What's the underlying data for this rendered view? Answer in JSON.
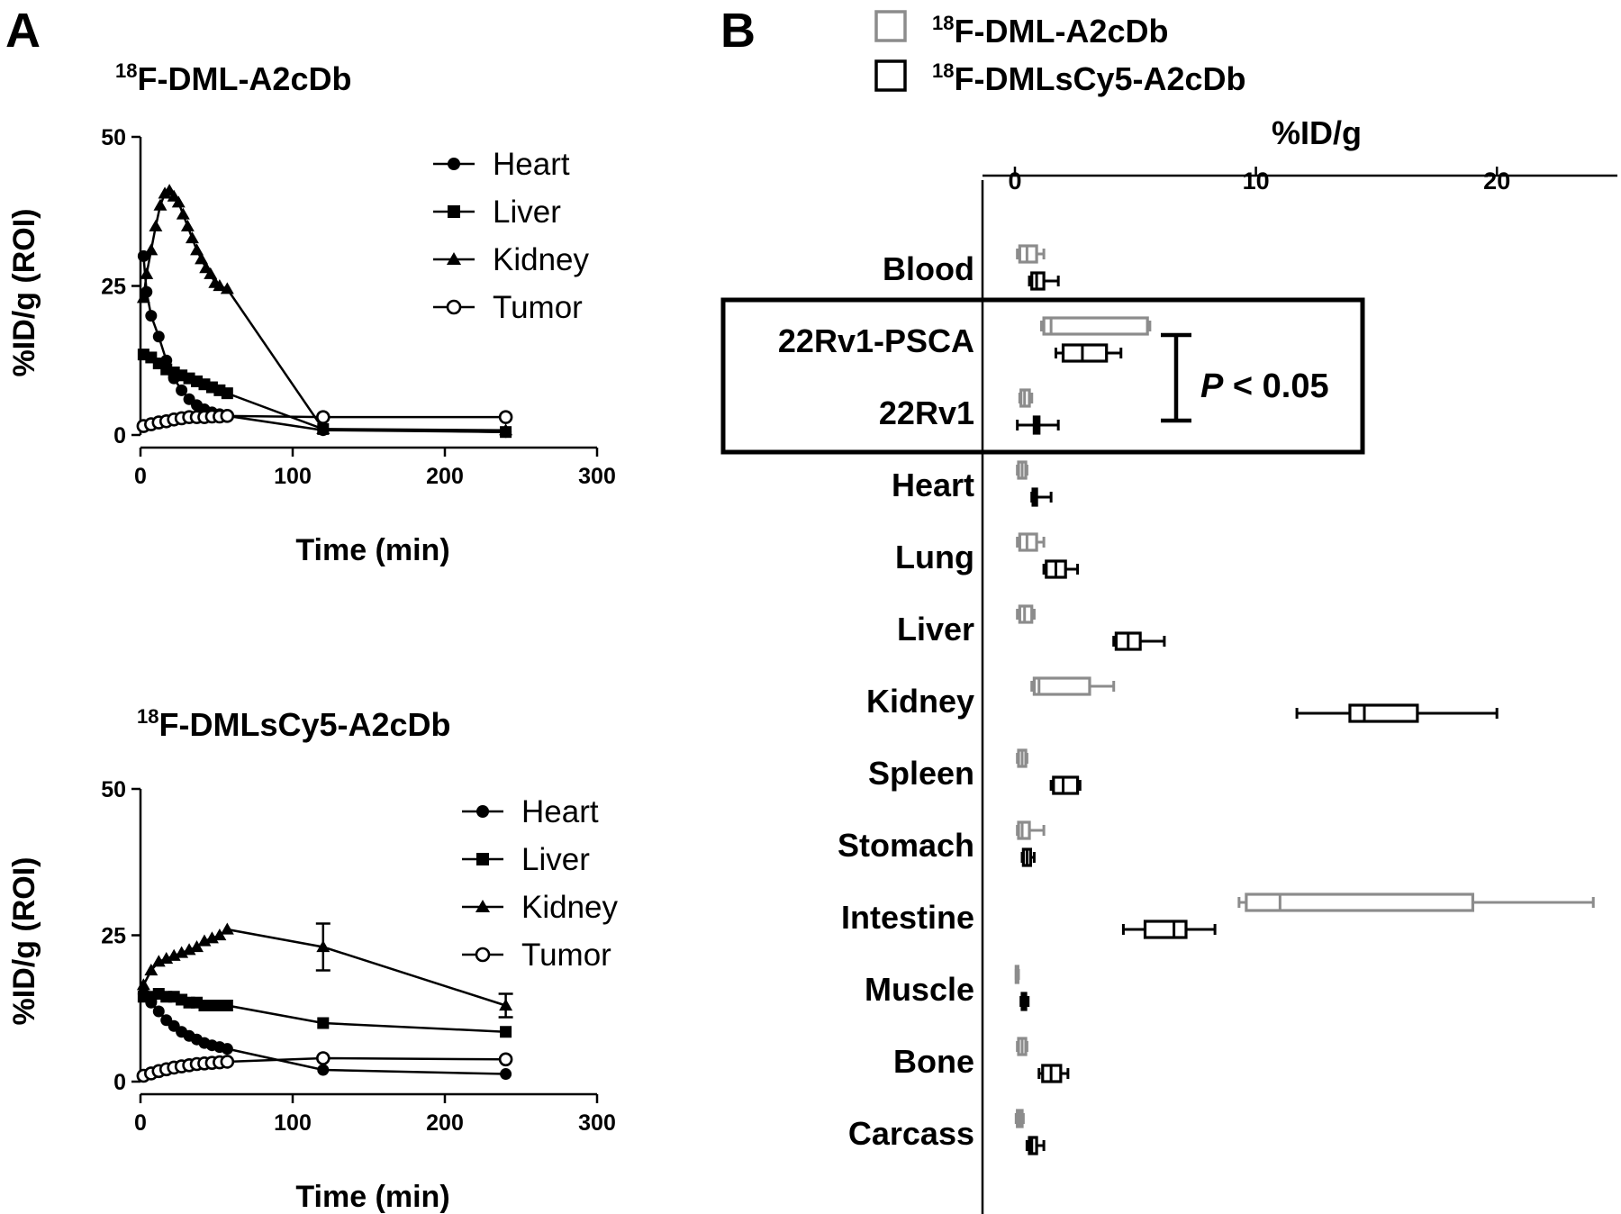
{
  "panel_a": {
    "letter": "A",
    "charts": [
      {
        "title_sup": "18",
        "title_main": "F-DML-A2cDb",
        "ylabel": "%ID/g (ROI)",
        "xlabel": "Time (min)",
        "yticks": [
          "0",
          "25",
          "50"
        ],
        "xticks": [
          "0",
          "100",
          "200",
          "300"
        ],
        "legend": [
          "Heart",
          "Liver",
          "Kidney",
          "Tumor"
        ]
      },
      {
        "title_sup": "18",
        "title_main": "F-DMLsCy5-A2cDb",
        "ylabel": "%ID/g (ROI)",
        "xlabel": "Time (min)",
        "yticks": [
          "0",
          "25",
          "50"
        ],
        "xticks": [
          "0",
          "100",
          "200",
          "300"
        ],
        "legend": [
          "Heart",
          "Liver",
          "Kidney",
          "Tumor"
        ]
      }
    ]
  },
  "panel_b": {
    "letter": "B",
    "legend": [
      {
        "sup": "18",
        "label": "F-DML-A2cDb",
        "color": "#8c8c8c"
      },
      {
        "sup": "18",
        "label": "F-DMLsCy5-A2cDb",
        "color": "#000000"
      }
    ],
    "xlabel": "%ID/g",
    "xticks": [
      "0",
      "10",
      "20"
    ],
    "annotation_p": "P",
    "annotation_rest": " < 0.05"
  },
  "chart_data": [
    {
      "type": "line",
      "title": "18F-DML-A2cDb",
      "xlabel": "Time (min)",
      "ylabel": "%ID/g (ROI)",
      "xlim": [
        0,
        300
      ],
      "ylim": [
        0,
        50
      ],
      "legend_position": "top-right",
      "series": [
        {
          "name": "Heart",
          "marker": "circle-filled",
          "x": [
            2,
            4,
            7,
            12,
            17,
            22,
            27,
            32,
            37,
            42,
            47,
            52,
            57,
            120,
            240
          ],
          "y": [
            30,
            24,
            20,
            16.5,
            12.5,
            9.5,
            7.5,
            6,
            5,
            4.3,
            3.8,
            3.5,
            3.2,
            0.8,
            0.5
          ]
        },
        {
          "name": "Liver",
          "marker": "square-filled",
          "x": [
            2,
            7,
            12,
            17,
            22,
            27,
            32,
            37,
            42,
            47,
            52,
            57,
            120,
            240
          ],
          "y": [
            13.5,
            13,
            12,
            11,
            10.5,
            10,
            9.5,
            9,
            8.5,
            8,
            7.5,
            7,
            1,
            0.5
          ]
        },
        {
          "name": "Kidney",
          "marker": "triangle-filled",
          "x": [
            2,
            4,
            7,
            10,
            13,
            16,
            19,
            22,
            25,
            28,
            31,
            34,
            37,
            40,
            43,
            46,
            49,
            52,
            57,
            120,
            240
          ],
          "y": [
            23,
            27,
            31,
            35,
            38.5,
            40.5,
            41,
            40,
            39,
            37,
            35,
            33,
            31,
            29.5,
            28,
            27,
            25.5,
            25,
            24.5,
            1,
            0.8
          ]
        },
        {
          "name": "Tumor",
          "marker": "circle-open",
          "x": [
            2,
            7,
            12,
            17,
            22,
            27,
            32,
            37,
            42,
            47,
            52,
            57,
            120,
            240
          ],
          "y": [
            1.5,
            1.8,
            2.1,
            2.3,
            2.6,
            2.8,
            3,
            3,
            3,
            3.1,
            3.1,
            3.2,
            3,
            3
          ]
        }
      ]
    },
    {
      "type": "line",
      "title": "18F-DMLsCy5-A2cDb",
      "xlabel": "Time (min)",
      "ylabel": "%ID/g (ROI)",
      "xlim": [
        0,
        300
      ],
      "ylim": [
        0,
        50
      ],
      "legend_position": "top-right",
      "series": [
        {
          "name": "Heart",
          "marker": "circle-filled",
          "x": [
            2,
            7,
            12,
            17,
            22,
            27,
            32,
            37,
            42,
            47,
            52,
            57,
            120,
            240
          ],
          "y": [
            15,
            13.5,
            12,
            10.5,
            9.5,
            8.5,
            7.8,
            7.2,
            6.6,
            6.2,
            5.9,
            5.6,
            2,
            1.3
          ]
        },
        {
          "name": "Liver",
          "marker": "square-filled",
          "x": [
            2,
            7,
            12,
            17,
            22,
            27,
            32,
            37,
            42,
            47,
            52,
            57,
            120,
            240
          ],
          "y": [
            14.5,
            14.5,
            15,
            14.5,
            14.5,
            14,
            13.5,
            13.5,
            13,
            13,
            13,
            13,
            10,
            8.5
          ]
        },
        {
          "name": "Kidney",
          "marker": "triangle-filled",
          "x": [
            2,
            7,
            12,
            17,
            22,
            27,
            32,
            37,
            42,
            47,
            52,
            57,
            120,
            240
          ],
          "y": [
            16.5,
            19,
            20.5,
            21,
            21.5,
            22,
            22.5,
            23,
            24,
            24.5,
            25,
            26,
            23,
            13
          ],
          "error": [
            0,
            0,
            0,
            0,
            0,
            0,
            0,
            0,
            0,
            0,
            0,
            0,
            4,
            2
          ]
        },
        {
          "name": "Tumor",
          "marker": "circle-open",
          "x": [
            2,
            7,
            12,
            17,
            22,
            27,
            32,
            37,
            42,
            47,
            52,
            57,
            120,
            240
          ],
          "y": [
            1,
            1.4,
            1.8,
            2.1,
            2.4,
            2.6,
            2.8,
            3,
            3.1,
            3.2,
            3.3,
            3.4,
            4,
            3.8
          ]
        }
      ]
    },
    {
      "type": "box",
      "orientation": "horizontal",
      "xlabel": "%ID/g",
      "xlim": [
        0,
        25
      ],
      "legend_position": "top-left",
      "categories": [
        "Blood",
        "22Rv1-PSCA",
        "22Rv1",
        "Heart",
        "Lung",
        "Liver",
        "Kidney",
        "Spleen",
        "Stomach",
        "Intestine",
        "Muscle",
        "Bone",
        "Carcass"
      ],
      "highlight_box": [
        "22Rv1-PSCA",
        "22Rv1"
      ],
      "series": [
        {
          "name": "18F-DML-A2cDb",
          "color": "#8c8c8c",
          "boxes": [
            [
              0.1,
              0.2,
              0.5,
              0.9,
              1.2
            ],
            [
              1.1,
              1.2,
              1.5,
              5.5,
              5.6
            ],
            [
              0.2,
              0.25,
              0.4,
              0.6,
              0.7
            ],
            [
              0.1,
              0.15,
              0.3,
              0.45,
              0.5
            ],
            [
              0.1,
              0.2,
              0.5,
              0.9,
              1.2
            ],
            [
              0.1,
              0.2,
              0.4,
              0.7,
              0.8
            ],
            [
              0.7,
              0.8,
              1.0,
              3.1,
              4.1
            ],
            [
              0.1,
              0.15,
              0.3,
              0.45,
              0.5
            ],
            [
              0.1,
              0.15,
              0.3,
              0.6,
              1.2
            ],
            [
              9.3,
              9.6,
              11.0,
              19.0,
              24.0
            ],
            [
              0.05,
              0.05,
              0.1,
              0.1,
              0.15
            ],
            [
              0.1,
              0.15,
              0.3,
              0.45,
              0.5
            ],
            [
              0.05,
              0.1,
              0.2,
              0.3,
              0.35
            ]
          ]
        },
        {
          "name": "18F-DMLsCy5-A2cDb",
          "color": "#000000",
          "boxes": [
            [
              0.6,
              0.7,
              0.9,
              1.2,
              1.8
            ],
            [
              1.7,
              2.0,
              2.8,
              3.8,
              4.4
            ],
            [
              0.1,
              0.8,
              0.9,
              1.0,
              1.8
            ],
            [
              0.7,
              0.75,
              0.8,
              0.9,
              1.5
            ],
            [
              1.2,
              1.3,
              1.7,
              2.1,
              2.6
            ],
            [
              4.1,
              4.2,
              4.7,
              5.2,
              6.2
            ],
            [
              11.7,
              13.9,
              14.5,
              16.7,
              20.0
            ],
            [
              1.5,
              1.6,
              2.0,
              2.6,
              2.7
            ],
            [
              0.3,
              0.35,
              0.5,
              0.65,
              0.8
            ],
            [
              4.5,
              5.4,
              6.6,
              7.1,
              8.3
            ],
            [
              0.25,
              0.3,
              0.35,
              0.45,
              0.55
            ],
            [
              1.0,
              1.15,
              1.5,
              1.9,
              2.2
            ],
            [
              0.5,
              0.6,
              0.7,
              0.9,
              1.2
            ]
          ]
        }
      ]
    }
  ]
}
